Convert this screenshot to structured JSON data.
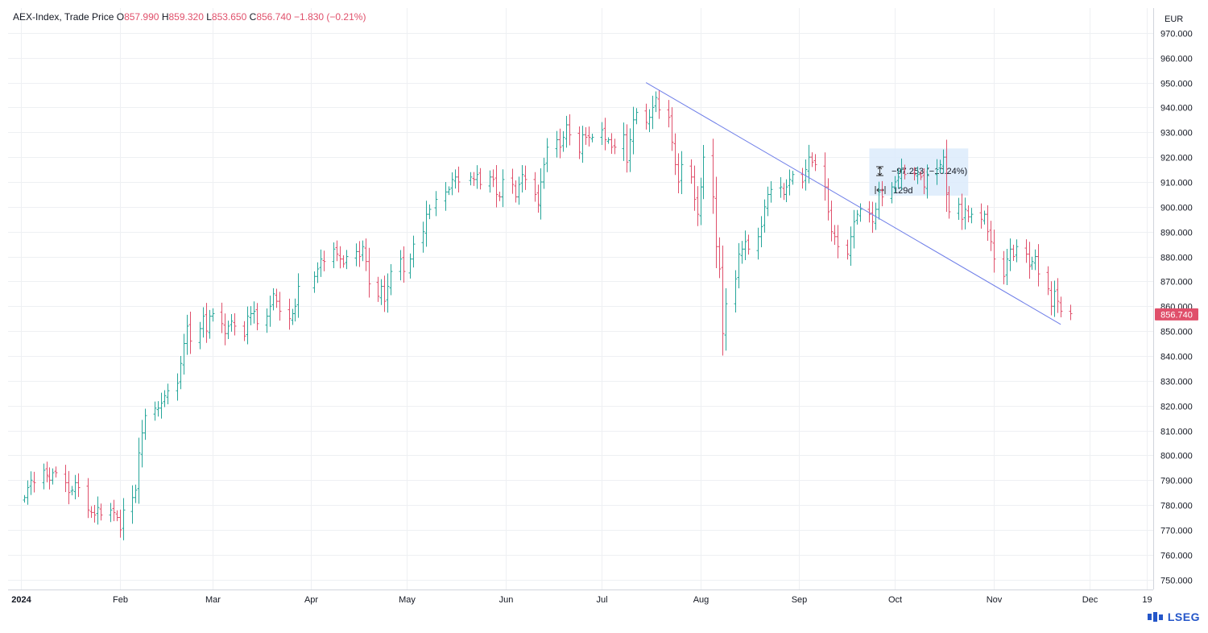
{
  "legend": {
    "symbol": "AEX-Index, Trade Price",
    "open_label": "O",
    "open": "857.990",
    "high_label": "H",
    "high": "859.320",
    "low_label": "L",
    "low": "853.650",
    "close_label": "C",
    "close": "856.740",
    "change": "−1.830 (−0.21%)"
  },
  "currency": "EUR",
  "last_price_label": "856.740",
  "measure": {
    "delta": "−97.253 (−10.24%)",
    "duration": "129d"
  },
  "brand": "LSEG",
  "colors": {
    "up": "#26a69a",
    "down": "#e0506b",
    "trendline": "#6e7ee8",
    "measure_bg": "#dcebfb",
    "grid": "#eef0f3"
  },
  "chart_data": {
    "type": "ohlc",
    "title": "AEX-Index, Trade Price",
    "ylabel": "EUR",
    "ylim": [
      746,
      980
    ],
    "y_ticks": [
      "970.000",
      "960.000",
      "950.000",
      "940.000",
      "930.000",
      "920.000",
      "910.000",
      "900.000",
      "890.000",
      "880.000",
      "870.000",
      "860.000",
      "850.000",
      "840.000",
      "830.000",
      "820.000",
      "810.000",
      "800.000",
      "790.000",
      "780.000",
      "770.000",
      "760.000",
      "750.000"
    ],
    "x_tick_labels": [
      "2024",
      "Feb",
      "Mar",
      "Apr",
      "May",
      "Jun",
      "Jul",
      "Aug",
      "Sep",
      "Oct",
      "Nov",
      "Dec",
      "19"
    ],
    "x_range": [
      "2023-12-28",
      "2024-12-21"
    ],
    "grid": true,
    "trendline": {
      "from": {
        "date": "2024-07-15",
        "value": 950
      },
      "to": {
        "date": "2024-11-22",
        "value": 852.7
      }
    },
    "measure_box": {
      "from_date": "2024-09-23",
      "to_date": "2024-10-24",
      "top": 923.5,
      "bottom": 904.5
    },
    "series": [
      {
        "d": "2024-01-02",
        "c": 783
      },
      {
        "d": "2024-01-03",
        "c": 787
      },
      {
        "d": "2024-01-04",
        "c": 790
      },
      {
        "d": "2024-01-05",
        "c": 789
      },
      {
        "d": "2024-01-08",
        "c": 794
      },
      {
        "d": "2024-01-09",
        "c": 792
      },
      {
        "d": "2024-01-10",
        "c": 790
      },
      {
        "d": "2024-01-11",
        "c": 793
      },
      {
        "d": "2024-01-12",
        "c": 793
      },
      {
        "d": "2024-01-15",
        "c": 789
      },
      {
        "d": "2024-01-16",
        "c": 785
      },
      {
        "d": "2024-01-17",
        "c": 786
      },
      {
        "d": "2024-01-18",
        "c": 789
      },
      {
        "d": "2024-01-19",
        "c": 787
      },
      {
        "d": "2024-01-22",
        "c": 778
      },
      {
        "d": "2024-01-23",
        "c": 777
      },
      {
        "d": "2024-01-24",
        "c": 776
      },
      {
        "d": "2024-01-25",
        "c": 779
      },
      {
        "d": "2024-01-26",
        "c": 776
      },
      {
        "d": "2024-01-29",
        "c": 778
      },
      {
        "d": "2024-01-30",
        "c": 777
      },
      {
        "d": "2024-01-31",
        "c": 775
      },
      {
        "d": "2024-02-01",
        "c": 770
      },
      {
        "d": "2024-02-02",
        "c": 778
      },
      {
        "d": "2024-02-05",
        "c": 783
      },
      {
        "d": "2024-02-06",
        "c": 786
      },
      {
        "d": "2024-02-07",
        "c": 801
      },
      {
        "d": "2024-02-08",
        "c": 809
      },
      {
        "d": "2024-02-09",
        "c": 816
      },
      {
        "d": "2024-02-12",
        "c": 819
      },
      {
        "d": "2024-02-13",
        "c": 819
      },
      {
        "d": "2024-02-14",
        "c": 821
      },
      {
        "d": "2024-02-15",
        "c": 824
      },
      {
        "d": "2024-02-16",
        "c": 826
      },
      {
        "d": "2024-02-19",
        "c": 829
      },
      {
        "d": "2024-02-20",
        "c": 837
      },
      {
        "d": "2024-02-21",
        "c": 845
      },
      {
        "d": "2024-02-22",
        "c": 852
      },
      {
        "d": "2024-02-23",
        "c": 846
      },
      {
        "d": "2024-02-26",
        "c": 851
      },
      {
        "d": "2024-02-27",
        "c": 856
      },
      {
        "d": "2024-02-28",
        "c": 850
      },
      {
        "d": "2024-02-29",
        "c": 856
      },
      {
        "d": "2024-03-01",
        "c": 857
      },
      {
        "d": "2024-03-04",
        "c": 853
      },
      {
        "d": "2024-03-05",
        "c": 849
      },
      {
        "d": "2024-03-06",
        "c": 852
      },
      {
        "d": "2024-03-07",
        "c": 854
      },
      {
        "d": "2024-03-08",
        "c": 852
      },
      {
        "d": "2024-03-11",
        "c": 848
      },
      {
        "d": "2024-03-12",
        "c": 856
      },
      {
        "d": "2024-03-13",
        "c": 857
      },
      {
        "d": "2024-03-14",
        "c": 858
      },
      {
        "d": "2024-03-15",
        "c": 853
      },
      {
        "d": "2024-03-18",
        "c": 856
      },
      {
        "d": "2024-03-19",
        "c": 860
      },
      {
        "d": "2024-03-20",
        "c": 865
      },
      {
        "d": "2024-03-21",
        "c": 862
      },
      {
        "d": "2024-03-22",
        "c": 858
      },
      {
        "d": "2024-03-25",
        "c": 855
      },
      {
        "d": "2024-03-26",
        "c": 857
      },
      {
        "d": "2024-03-27",
        "c": 860
      },
      {
        "d": "2024-03-28",
        "c": 868
      },
      {
        "d": "2024-04-02",
        "c": 872
      },
      {
        "d": "2024-04-03",
        "c": 875
      },
      {
        "d": "2024-04-04",
        "c": 879
      },
      {
        "d": "2024-04-05",
        "c": 878
      },
      {
        "d": "2024-04-08",
        "c": 883
      },
      {
        "d": "2024-04-09",
        "c": 881
      },
      {
        "d": "2024-04-10",
        "c": 879
      },
      {
        "d": "2024-04-11",
        "c": 877
      },
      {
        "d": "2024-04-12",
        "c": 880
      },
      {
        "d": "2024-04-15",
        "c": 882
      },
      {
        "d": "2024-04-16",
        "c": 880
      },
      {
        "d": "2024-04-17",
        "c": 884
      },
      {
        "d": "2024-04-18",
        "c": 878
      },
      {
        "d": "2024-04-19",
        "c": 869
      },
      {
        "d": "2024-04-22",
        "c": 864
      },
      {
        "d": "2024-04-23",
        "c": 868
      },
      {
        "d": "2024-04-24",
        "c": 862
      },
      {
        "d": "2024-04-25",
        "c": 868
      },
      {
        "d": "2024-04-26",
        "c": 874
      },
      {
        "d": "2024-04-29",
        "c": 879
      },
      {
        "d": "2024-04-30",
        "c": 874
      },
      {
        "d": "2024-05-02",
        "c": 879
      },
      {
        "d": "2024-05-03",
        "c": 885
      },
      {
        "d": "2024-05-06",
        "c": 890
      },
      {
        "d": "2024-05-07",
        "c": 897
      },
      {
        "d": "2024-05-08",
        "c": 899
      },
      {
        "d": "2024-05-10",
        "c": 903
      },
      {
        "d": "2024-05-13",
        "c": 906
      },
      {
        "d": "2024-05-14",
        "c": 907
      },
      {
        "d": "2024-05-15",
        "c": 911
      },
      {
        "d": "2024-05-16",
        "c": 912
      },
      {
        "d": "2024-05-17",
        "c": 910
      },
      {
        "d": "2024-05-21",
        "c": 912
      },
      {
        "d": "2024-05-22",
        "c": 911
      },
      {
        "d": "2024-05-23",
        "c": 913
      },
      {
        "d": "2024-05-24",
        "c": 909
      },
      {
        "d": "2024-05-27",
        "c": 912
      },
      {
        "d": "2024-05-28",
        "c": 911
      },
      {
        "d": "2024-05-29",
        "c": 905
      },
      {
        "d": "2024-05-30",
        "c": 904
      },
      {
        "d": "2024-05-31",
        "c": 911
      },
      {
        "d": "2024-06-03",
        "c": 909
      },
      {
        "d": "2024-06-04",
        "c": 904
      },
      {
        "d": "2024-06-05",
        "c": 909
      },
      {
        "d": "2024-06-06",
        "c": 913
      },
      {
        "d": "2024-06-07",
        "c": 911
      },
      {
        "d": "2024-06-10",
        "c": 905
      },
      {
        "d": "2024-06-11",
        "c": 901
      },
      {
        "d": "2024-06-12",
        "c": 910
      },
      {
        "d": "2024-06-13",
        "c": 917
      },
      {
        "d": "2024-06-14",
        "c": 924
      },
      {
        "d": "2024-06-17",
        "c": 927
      },
      {
        "d": "2024-06-18",
        "c": 924
      },
      {
        "d": "2024-06-19",
        "c": 928
      },
      {
        "d": "2024-06-20",
        "c": 933
      },
      {
        "d": "2024-06-21",
        "c": 929
      },
      {
        "d": "2024-06-24",
        "c": 922
      },
      {
        "d": "2024-06-25",
        "c": 929
      },
      {
        "d": "2024-06-26",
        "c": 928
      },
      {
        "d": "2024-06-27",
        "c": 928
      },
      {
        "d": "2024-06-28",
        "c": 928
      },
      {
        "d": "2024-07-01",
        "c": 931
      },
      {
        "d": "2024-07-02",
        "c": 927
      },
      {
        "d": "2024-07-03",
        "c": 927
      },
      {
        "d": "2024-07-04",
        "c": 924
      },
      {
        "d": "2024-07-05",
        "c": 924
      },
      {
        "d": "2024-07-08",
        "c": 929
      },
      {
        "d": "2024-07-09",
        "c": 918
      },
      {
        "d": "2024-07-10",
        "c": 927
      },
      {
        "d": "2024-07-11",
        "c": 935
      },
      {
        "d": "2024-07-12",
        "c": 938
      },
      {
        "d": "2024-07-15",
        "c": 934
      },
      {
        "d": "2024-07-16",
        "c": 936
      },
      {
        "d": "2024-07-17",
        "c": 940
      },
      {
        "d": "2024-07-18",
        "c": 944
      },
      {
        "d": "2024-07-19",
        "c": 939
      },
      {
        "d": "2024-07-22",
        "c": 936
      },
      {
        "d": "2024-07-23",
        "c": 926
      },
      {
        "d": "2024-07-24",
        "c": 917
      },
      {
        "d": "2024-07-25",
        "c": 910
      },
      {
        "d": "2024-07-26",
        "c": 917
      },
      {
        "d": "2024-07-29",
        "c": 912
      },
      {
        "d": "2024-07-30",
        "c": 903
      },
      {
        "d": "2024-07-31",
        "c": 897
      },
      {
        "d": "2024-08-01",
        "c": 908
      },
      {
        "d": "2024-08-02",
        "c": 920
      },
      {
        "d": "2024-08-05",
        "c": 904
      },
      {
        "d": "2024-08-06",
        "c": 884
      },
      {
        "d": "2024-08-07",
        "c": 875
      },
      {
        "d": "2024-08-08",
        "c": 849
      },
      {
        "d": "2024-08-09",
        "c": 861
      },
      {
        "d": "2024-08-12",
        "c": 871
      },
      {
        "d": "2024-08-13",
        "c": 881
      },
      {
        "d": "2024-08-14",
        "c": 883
      },
      {
        "d": "2024-08-15",
        "c": 886
      },
      {
        "d": "2024-08-16",
        "c": 883
      },
      {
        "d": "2024-08-19",
        "c": 888
      },
      {
        "d": "2024-08-20",
        "c": 892
      },
      {
        "d": "2024-08-21",
        "c": 900
      },
      {
        "d": "2024-08-22",
        "c": 905
      },
      {
        "d": "2024-08-23",
        "c": 907
      },
      {
        "d": "2024-08-26",
        "c": 908
      },
      {
        "d": "2024-08-27",
        "c": 905
      },
      {
        "d": "2024-08-28",
        "c": 908
      },
      {
        "d": "2024-08-29",
        "c": 911
      },
      {
        "d": "2024-08-30",
        "c": 913
      },
      {
        "d": "2024-09-02",
        "c": 910
      },
      {
        "d": "2024-09-03",
        "c": 915
      },
      {
        "d": "2024-09-04",
        "c": 920
      },
      {
        "d": "2024-09-05",
        "c": 918
      },
      {
        "d": "2024-09-06",
        "c": 917
      },
      {
        "d": "2024-09-09",
        "c": 908
      },
      {
        "d": "2024-09-10",
        "c": 898
      },
      {
        "d": "2024-09-11",
        "c": 890
      },
      {
        "d": "2024-09-12",
        "c": 888
      },
      {
        "d": "2024-09-13",
        "c": 884
      },
      {
        "d": "2024-09-16",
        "c": 881
      },
      {
        "d": "2024-09-17",
        "c": 888
      },
      {
        "d": "2024-09-18",
        "c": 894
      },
      {
        "d": "2024-09-19",
        "c": 897
      },
      {
        "d": "2024-09-20",
        "c": 899
      },
      {
        "d": "2024-09-23",
        "c": 897
      },
      {
        "d": "2024-09-24",
        "c": 894
      },
      {
        "d": "2024-09-25",
        "c": 899
      },
      {
        "d": "2024-09-26",
        "c": 906
      },
      {
        "d": "2024-09-27",
        "c": 904
      },
      {
        "d": "2024-09-30",
        "c": 908
      },
      {
        "d": "2024-10-01",
        "c": 910
      },
      {
        "d": "2024-10-02",
        "c": 912
      },
      {
        "d": "2024-10-03",
        "c": 915
      },
      {
        "d": "2024-10-04",
        "c": 913
      },
      {
        "d": "2024-10-07",
        "c": 913
      },
      {
        "d": "2024-10-08",
        "c": 913
      },
      {
        "d": "2024-10-09",
        "c": 912
      },
      {
        "d": "2024-10-10",
        "c": 908
      },
      {
        "d": "2024-10-11",
        "c": 913
      },
      {
        "d": "2024-10-14",
        "c": 915
      },
      {
        "d": "2024-10-15",
        "c": 917
      },
      {
        "d": "2024-10-16",
        "c": 920
      },
      {
        "d": "2024-10-17",
        "c": 905
      },
      {
        "d": "2024-10-18",
        "c": 898
      },
      {
        "d": "2024-10-21",
        "c": 901
      },
      {
        "d": "2024-10-22",
        "c": 895
      },
      {
        "d": "2024-10-23",
        "c": 899
      },
      {
        "d": "2024-10-24",
        "c": 896
      },
      {
        "d": "2024-10-25",
        "c": 897
      },
      {
        "d": "2024-10-28",
        "c": 895
      },
      {
        "d": "2024-10-29",
        "c": 897
      },
      {
        "d": "2024-10-30",
        "c": 890
      },
      {
        "d": "2024-10-31",
        "c": 886
      },
      {
        "d": "2024-11-01",
        "c": 879
      },
      {
        "d": "2024-11-04",
        "c": 872
      },
      {
        "d": "2024-11-05",
        "c": 879
      },
      {
        "d": "2024-11-06",
        "c": 883
      },
      {
        "d": "2024-11-07",
        "c": 880
      },
      {
        "d": "2024-11-08",
        "c": 884
      },
      {
        "d": "2024-11-11",
        "c": 881
      },
      {
        "d": "2024-11-12",
        "c": 876
      },
      {
        "d": "2024-11-13",
        "c": 878
      },
      {
        "d": "2024-11-14",
        "c": 880
      },
      {
        "d": "2024-11-15",
        "c": 873
      },
      {
        "d": "2024-11-18",
        "c": 867
      },
      {
        "d": "2024-11-19",
        "c": 860
      },
      {
        "d": "2024-11-20",
        "c": 866
      },
      {
        "d": "2024-11-21",
        "c": 862
      },
      {
        "d": "2024-11-22",
        "c": 858
      },
      {
        "d": "2024-11-25",
        "c": 857
      }
    ]
  }
}
